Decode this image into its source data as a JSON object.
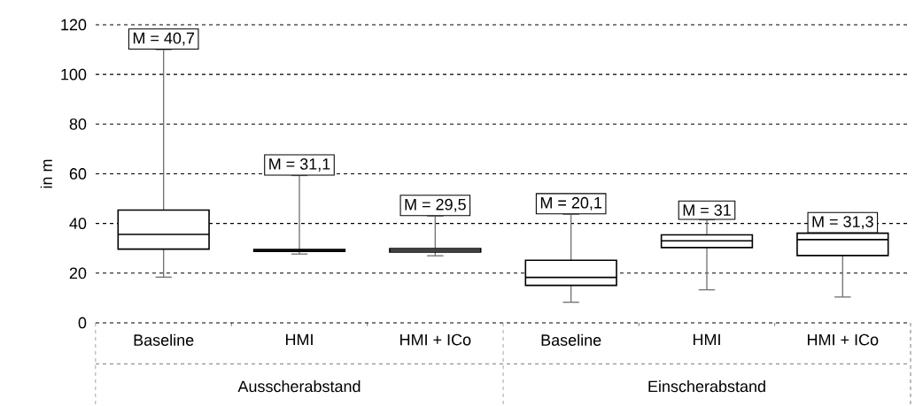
{
  "chart_data": {
    "type": "box",
    "ylabel": "in m",
    "categories": [
      "Baseline",
      "HMI",
      "HMI + ICo",
      "Baseline",
      "HMI",
      "HMI + ICo"
    ],
    "boxes": [
      {
        "low": 18.4,
        "q1": 29.7,
        "median": 35.6,
        "q3": 45.4,
        "high": 110
      },
      {
        "low": 27.7,
        "q1": 28.8,
        "median": 29.2,
        "q3": 29.5,
        "high": 59.3
      },
      {
        "low": 27,
        "q1": 28.5,
        "median": 29.2,
        "q3": 29.9,
        "high": 43
      },
      {
        "low": 8.3,
        "q1": 15.1,
        "median": 18.3,
        "q3": 25.2,
        "high": 43.7
      },
      {
        "low": 13.3,
        "q1": 30.3,
        "median": 33,
        "q3": 35.4,
        "high": 41.5
      },
      {
        "low": 10.4,
        "q1": 27.1,
        "median": 33.5,
        "q3": 36.1,
        "high": 36.1
      }
    ],
    "ylim": [
      0,
      120
    ],
    "yticks": [
      0,
      20,
      40,
      60,
      80,
      100,
      120
    ],
    "grid": "y",
    "annotations": [
      "M =  40,7",
      "M =  31,1",
      "M =  29,5",
      "M =  20,1",
      "M =  31",
      "M =  31,3",
      "Ausscherabstand",
      "Einscherabstand"
    ]
  }
}
